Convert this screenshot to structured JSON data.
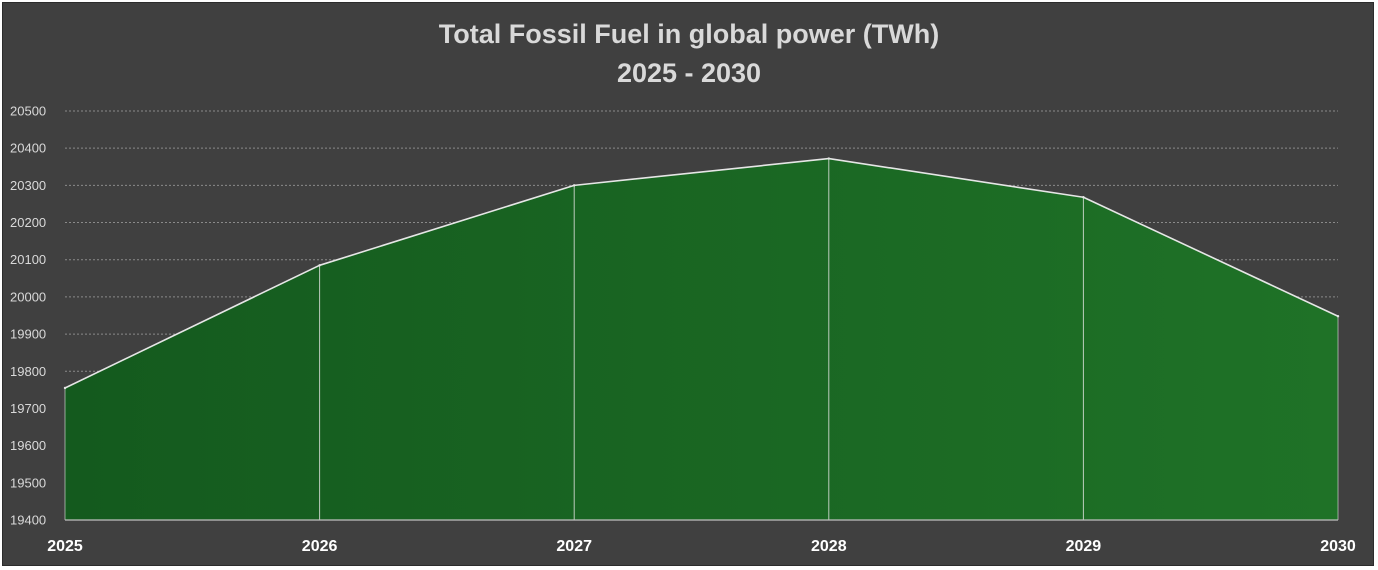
{
  "chart_data": {
    "type": "area",
    "title_line1": "Total Fossil Fuel in global power (TWh)",
    "title_line2": "2025 - 2030",
    "categories": [
      "2025",
      "2026",
      "2027",
      "2028",
      "2029",
      "2030"
    ],
    "series": [
      {
        "name": "Total Fossil Fuel",
        "values": [
          19755,
          20085,
          20300,
          20372,
          20268,
          19948
        ]
      }
    ],
    "ylim": [
      19400,
      20500
    ],
    "yticks": [
      19400,
      19500,
      19600,
      19700,
      19800,
      19900,
      20000,
      20100,
      20200,
      20300,
      20400,
      20500
    ],
    "grid": true,
    "xlabel": "",
    "ylabel": "",
    "colors": {
      "background": "#404040",
      "fill_dark": "#145a1e",
      "fill_light": "#1f7227",
      "line": "#e6e6e6",
      "grid": "#8a8a8a",
      "text": "#d9d9d9"
    }
  }
}
